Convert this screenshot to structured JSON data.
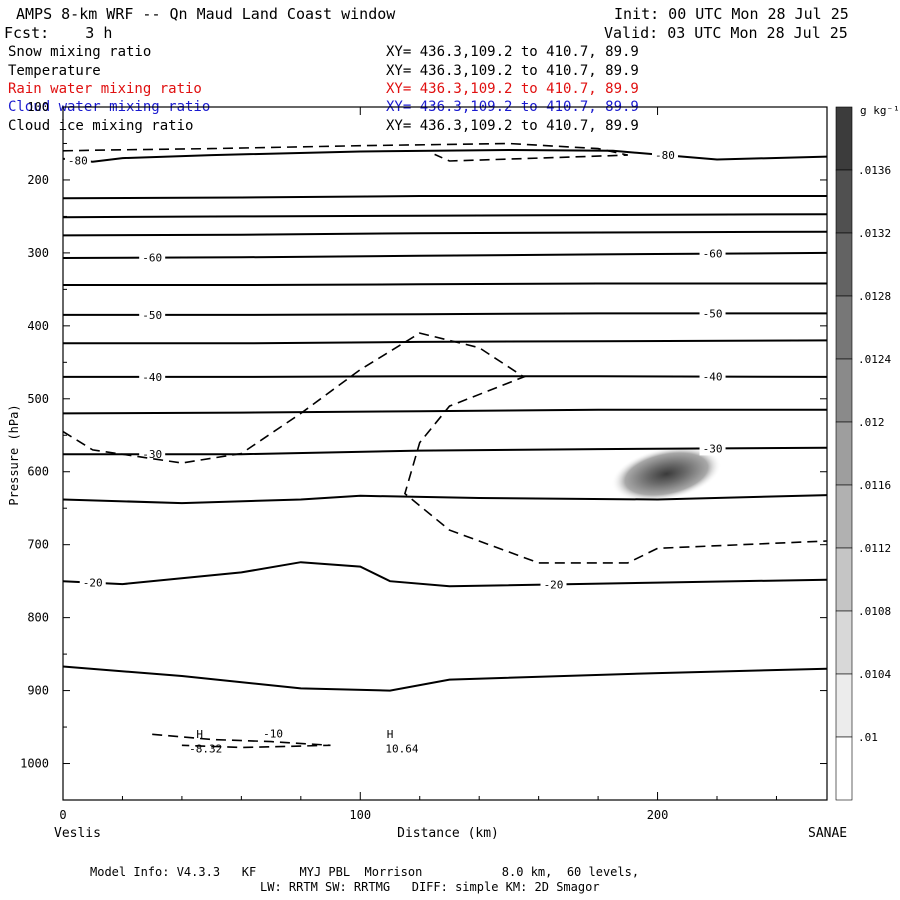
{
  "header": {
    "title": "AMPS 8-km WRF -- Qn Maud Land Coast window",
    "init": "Init: 00 UTC Mon 28 Jul 25",
    "fcst": "Fcst:    3 h",
    "valid": "Valid: 03 UTC Mon 28 Jul 25"
  },
  "fields": [
    {
      "name": "Snow mixing ratio",
      "xy": "XY= 436.3,109.2 to 410.7, 89.9",
      "color": "#000000"
    },
    {
      "name": "Temperature",
      "xy": "XY= 436.3,109.2 to 410.7, 89.9",
      "color": "#000000"
    },
    {
      "name": "Rain water mixing ratio",
      "xy": "XY= 436.3,109.2 to 410.7, 89.9",
      "color": "#e01010"
    },
    {
      "name": "Cloud water mixing ratio",
      "xy": "XY= 436.3,109.2 to 410.7, 89.9",
      "color": "#1a1ad0"
    },
    {
      "name": "Cloud ice mixing ratio",
      "xy": "XY= 436.3,109.2 to 410.7, 89.9",
      "color": "#000000"
    }
  ],
  "chart_data": {
    "type": "contour",
    "xlabel": "Distance (km)",
    "ylabel": "Pressure (hPa)",
    "xlim": [
      0,
      257
    ],
    "ylim": [
      1050,
      100
    ],
    "xticks": [
      0,
      100,
      200
    ],
    "yticks": [
      100,
      200,
      300,
      400,
      500,
      600,
      700,
      800,
      900,
      1000
    ],
    "x_endpoints": {
      "left": "Veslis",
      "right": "SANAE"
    },
    "temperature_contours": [
      {
        "label": "-80",
        "points": [
          [
            0,
            171
          ],
          [
            10,
            175
          ],
          [
            20,
            170
          ],
          [
            50,
            166
          ],
          [
            100,
            161
          ],
          [
            150,
            159
          ],
          [
            185,
            160
          ],
          [
            220,
            172
          ],
          [
            257,
            168
          ]
        ]
      },
      {
        "label": "",
        "points": [
          [
            0,
            225
          ],
          [
            60,
            224
          ],
          [
            120,
            222
          ],
          [
            180,
            222
          ],
          [
            257,
            222
          ]
        ]
      },
      {
        "label": "",
        "points": [
          [
            0,
            251
          ],
          [
            60,
            250
          ],
          [
            120,
            249
          ],
          [
            180,
            248
          ],
          [
            257,
            247
          ]
        ]
      },
      {
        "label": "",
        "points": [
          [
            0,
            276
          ],
          [
            60,
            275
          ],
          [
            120,
            273
          ],
          [
            180,
            272
          ],
          [
            257,
            271
          ]
        ]
      },
      {
        "label": "-60",
        "points": [
          [
            0,
            307
          ],
          [
            60,
            306
          ],
          [
            120,
            304
          ],
          [
            180,
            302
          ],
          [
            257,
            300
          ]
        ]
      },
      {
        "label": "",
        "points": [
          [
            0,
            344
          ],
          [
            60,
            344
          ],
          [
            120,
            343
          ],
          [
            180,
            342
          ],
          [
            257,
            342
          ]
        ]
      },
      {
        "label": "-50",
        "points": [
          [
            0,
            385
          ],
          [
            60,
            385
          ],
          [
            120,
            384
          ],
          [
            180,
            383
          ],
          [
            257,
            383
          ]
        ]
      },
      {
        "label": "",
        "points": [
          [
            0,
            424
          ],
          [
            60,
            424
          ],
          [
            120,
            422
          ],
          [
            180,
            421
          ],
          [
            257,
            420
          ]
        ]
      },
      {
        "label": "-40",
        "points": [
          [
            0,
            470
          ],
          [
            60,
            470
          ],
          [
            120,
            469
          ],
          [
            180,
            469
          ],
          [
            257,
            470
          ]
        ]
      },
      {
        "label": "",
        "points": [
          [
            0,
            520
          ],
          [
            60,
            519
          ],
          [
            120,
            517
          ],
          [
            180,
            515
          ],
          [
            257,
            515
          ]
        ]
      },
      {
        "label": "-30",
        "points": [
          [
            0,
            576
          ],
          [
            60,
            576
          ],
          [
            120,
            571
          ],
          [
            180,
            569
          ],
          [
            257,
            567
          ]
        ]
      },
      {
        "label": "",
        "points": [
          [
            0,
            638
          ],
          [
            40,
            643
          ],
          [
            80,
            638
          ],
          [
            100,
            633
          ],
          [
            140,
            636
          ],
          [
            200,
            638
          ],
          [
            257,
            632
          ]
        ]
      },
      {
        "label": "-20",
        "points": [
          [
            0,
            750
          ],
          [
            20,
            754
          ],
          [
            60,
            738
          ],
          [
            80,
            724
          ],
          [
            100,
            730
          ],
          [
            110,
            750
          ],
          [
            130,
            757
          ],
          [
            200,
            752
          ],
          [
            257,
            748
          ]
        ]
      },
      {
        "label": "",
        "points": [
          [
            0,
            867
          ],
          [
            40,
            880
          ],
          [
            80,
            897
          ],
          [
            110,
            900
          ],
          [
            130,
            885
          ],
          [
            200,
            876
          ],
          [
            257,
            870
          ]
        ]
      }
    ],
    "snow_contours": [
      {
        "label": "",
        "points": [
          [
            0,
            160
          ],
          [
            15,
            159
          ],
          [
            50,
            157
          ],
          [
            100,
            153
          ],
          [
            150,
            150
          ],
          [
            180,
            157
          ],
          [
            190,
            166
          ],
          [
            160,
            170
          ],
          [
            130,
            174
          ],
          [
            125,
            165
          ]
        ]
      },
      {
        "label": "",
        "points": [
          [
            0,
            545
          ],
          [
            10,
            570
          ],
          [
            40,
            588
          ],
          [
            60,
            575
          ],
          [
            80,
            520
          ],
          [
            100,
            460
          ],
          [
            120,
            410
          ],
          [
            140,
            430
          ],
          [
            155,
            470
          ],
          [
            130,
            510
          ],
          [
            120,
            560
          ],
          [
            115,
            630
          ],
          [
            130,
            680
          ],
          [
            160,
            725
          ],
          [
            190,
            725
          ],
          [
            200,
            705
          ],
          [
            257,
            695
          ]
        ]
      },
      {
        "label": "-10",
        "points": [
          [
            30,
            960
          ],
          [
            50,
            967
          ],
          [
            70,
            970
          ],
          [
            90,
            975
          ],
          [
            60,
            978
          ],
          [
            40,
            975
          ]
        ]
      }
    ],
    "ice_maximum": {
      "x": 203,
      "p": 603,
      "value": 0.0136
    },
    "annotations": [
      {
        "text": "H",
        "x": 46,
        "p": 965
      },
      {
        "text": "-8.32",
        "x": 48,
        "p": 985
      },
      {
        "text": "H",
        "x": 110,
        "p": 965
      },
      {
        "text": "10.64",
        "x": 114,
        "p": 985
      }
    ],
    "colorbar": {
      "unit": "g kg⁻¹",
      "ticks": [
        ".0136",
        ".0132",
        ".0128",
        ".0124",
        ".012",
        ".0116",
        ".0112",
        ".0108",
        ".0104",
        ".01"
      ]
    }
  },
  "footer": {
    "line1": "Model Info: V4.3.3   KF      MYJ PBL  Morrison           8.0 km,  60 levels,",
    "line2": "LW: RRTM SW: RRTMG   DIFF: simple KM: 2D Smagor"
  }
}
